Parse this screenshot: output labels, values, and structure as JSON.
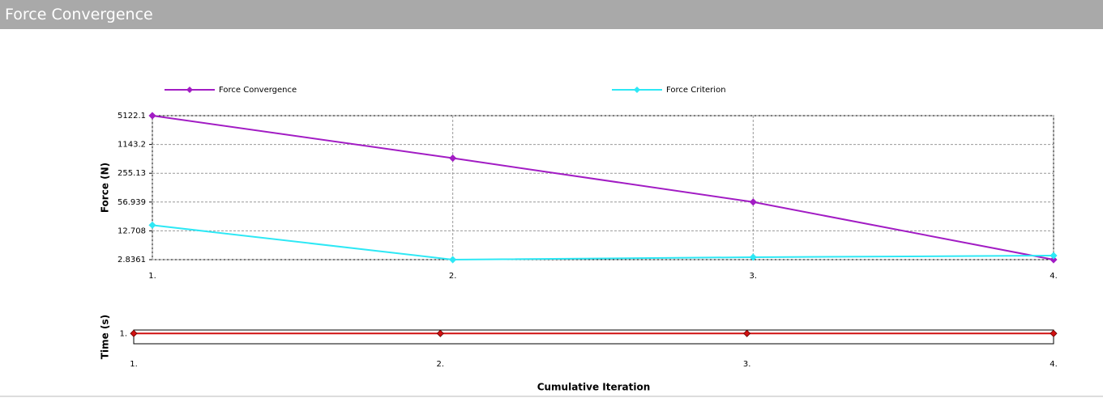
{
  "header": {
    "title": "Force Convergence"
  },
  "chart_data": [
    {
      "type": "line",
      "log_y": true,
      "grid": true,
      "legend": "top",
      "y_label": "Force (N)",
      "x": [
        1,
        2,
        3,
        4
      ],
      "xlim": [
        1,
        4
      ],
      "xticks": [
        {
          "value": 1,
          "label": "1."
        },
        {
          "value": 2,
          "label": "2."
        },
        {
          "value": 3,
          "label": "3."
        },
        {
          "value": 4,
          "label": "4."
        }
      ],
      "ylim": [
        2.8361,
        5122.1
      ],
      "yticks": [
        2.8361,
        12.708,
        56.939,
        255.13,
        1143.2,
        5122.1
      ],
      "series": [
        {
          "name": "Force Convergence",
          "color": "#a21cc4",
          "values": [
            5122.1,
            560,
            57,
            2.8361
          ]
        },
        {
          "name": "Force Criterion",
          "color": "#2ee8f5",
          "values": [
            17.1,
            2.8361,
            3.22,
            3.5
          ]
        }
      ]
    },
    {
      "type": "line",
      "log_y": false,
      "grid": false,
      "y_label": "Time (s)",
      "x_label": "Cumulative Iteration",
      "x": [
        1,
        2,
        3,
        4
      ],
      "xlim": [
        1,
        4
      ],
      "xticks": [
        {
          "value": 1,
          "label": "1."
        },
        {
          "value": 2,
          "label": "2."
        },
        {
          "value": 3,
          "label": "3."
        },
        {
          "value": 4,
          "label": "4."
        }
      ],
      "ylim": [
        0.4,
        1.2
      ],
      "yticks": [
        {
          "value": 1,
          "label": "1."
        }
      ],
      "series": [
        {
          "color": "#d01010",
          "values": [
            1,
            1,
            1,
            1
          ]
        }
      ]
    }
  ]
}
